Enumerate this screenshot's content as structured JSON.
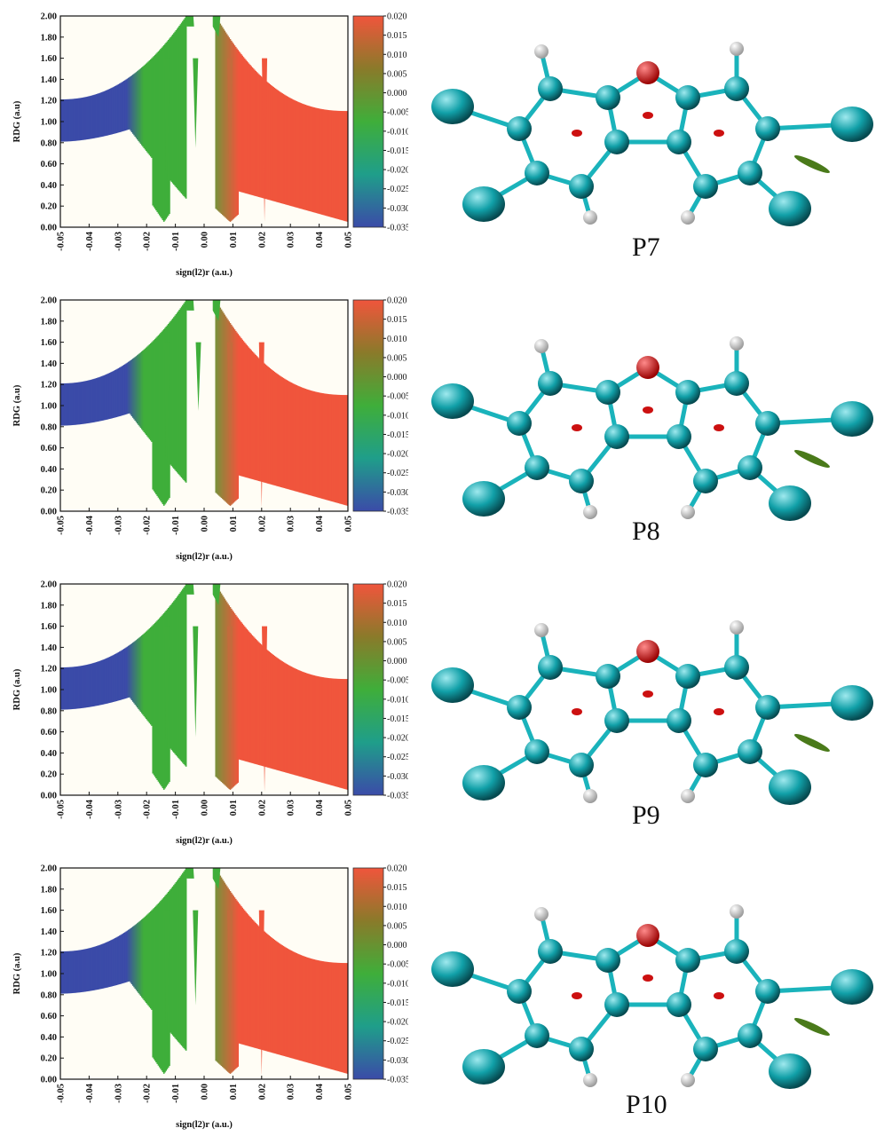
{
  "colors": {
    "blue": "#3b4ba8",
    "green": "#3fae3a",
    "red": "#f0553c",
    "carbon": "#11a0a8",
    "oxygen": "#e01818",
    "hydrogen": "#e8e8e8"
  },
  "molecule_labels": [
    "P7",
    "P8",
    "P9",
    "P10"
  ],
  "chart_data": [
    {
      "type": "scatter",
      "title": "",
      "xlabel": "sign(l2)r (a.u.)",
      "ylabel": "RDG (a.u)",
      "xlim": [
        -0.05,
        0.05
      ],
      "ylim": [
        0.0,
        2.0
      ],
      "x_ticks": [
        "-0.05",
        "-0.04",
        "-0.03",
        "-0.02",
        "-0.01",
        "0.00",
        "0.01",
        "0.02",
        "0.03",
        "0.04",
        "0.05"
      ],
      "y_ticks": [
        "0.00",
        "0.20",
        "0.40",
        "0.60",
        "0.80",
        "1.00",
        "1.20",
        "1.40",
        "1.60",
        "1.80",
        "2.00"
      ],
      "colorbar": {
        "range": [
          -0.035,
          0.02
        ],
        "ticks": [
          "0.020",
          "0.015",
          "0.010",
          "0.005",
          "0.000",
          "-0.005",
          "-0.010",
          "-0.015",
          "-0.020",
          "-0.025",
          "-0.030",
          "-0.035"
        ],
        "colors": [
          "#3b4ba8",
          "#1f9e8a",
          "#3fae3a",
          "#8a7a2a",
          "#f0553c"
        ]
      },
      "spikes": [
        {
          "x": -0.013,
          "y": 0.08
        },
        {
          "x": -0.003,
          "y": 0.75
        },
        {
          "x": 0.009,
          "y": 0.1
        },
        {
          "x": 0.021,
          "y": 0.05
        }
      ]
    },
    {
      "type": "scatter",
      "title": "",
      "xlabel": "sign(l2)r (a.u.)",
      "ylabel": "RDG (a.u)",
      "xlim": [
        -0.05,
        0.05
      ],
      "ylim": [
        0.0,
        2.0
      ],
      "x_ticks": [
        "-0.05",
        "-0.04",
        "-0.03",
        "-0.02",
        "-0.01",
        "0.00",
        "0.01",
        "0.02",
        "0.03",
        "0.04",
        "0.05"
      ],
      "y_ticks": [
        "0.00",
        "0.20",
        "0.40",
        "0.60",
        "0.80",
        "1.00",
        "1.20",
        "1.40",
        "1.60",
        "1.80",
        "2.00"
      ],
      "colorbar": {
        "range": [
          -0.035,
          0.02
        ],
        "ticks": [
          "0.020",
          "0.015",
          "0.010",
          "0.005",
          "0.000",
          "-0.005",
          "-0.010",
          "-0.015",
          "-0.020",
          "-0.025",
          "-0.030",
          "-0.035"
        ],
        "colors": [
          "#3b4ba8",
          "#1f9e8a",
          "#3fae3a",
          "#8a7a2a",
          "#f0553c"
        ]
      },
      "spikes": [
        {
          "x": -0.013,
          "y": 0.05
        },
        {
          "x": -0.002,
          "y": 0.95
        },
        {
          "x": 0.009,
          "y": 0.05
        },
        {
          "x": 0.02,
          "y": 0.03
        }
      ]
    },
    {
      "type": "scatter",
      "title": "",
      "xlabel": "sign(l2)r (a.u.)",
      "ylabel": "RDG (a.u)",
      "xlim": [
        -0.05,
        0.05
      ],
      "ylim": [
        0.0,
        2.0
      ],
      "x_ticks": [
        "-0.05",
        "-0.04",
        "-0.03",
        "-0.02",
        "-0.01",
        "0.00",
        "0.01",
        "0.02",
        "0.03",
        "0.04",
        "0.05"
      ],
      "y_ticks": [
        "0.00",
        "0.20",
        "0.40",
        "0.60",
        "0.80",
        "1.00",
        "1.20",
        "1.40",
        "1.60",
        "1.80",
        "2.00"
      ],
      "colorbar": {
        "range": [
          -0.035,
          0.02
        ],
        "ticks": [
          "0.020",
          "0.015",
          "0.010",
          "0.005",
          "0.000",
          "-0.005",
          "-0.010",
          "-0.015",
          "-0.020",
          "-0.025",
          "-0.030",
          "-0.035"
        ],
        "colors": [
          "#3b4ba8",
          "#1f9e8a",
          "#3fae3a",
          "#8a7a2a",
          "#f0553c"
        ]
      },
      "spikes": [
        {
          "x": -0.013,
          "y": 0.08
        },
        {
          "x": -0.003,
          "y": 0.55
        },
        {
          "x": 0.009,
          "y": 0.05
        },
        {
          "x": 0.021,
          "y": 0.03
        }
      ]
    },
    {
      "type": "scatter",
      "title": "",
      "xlabel": "sign(l2)r (a.u.)",
      "ylabel": "RDG (a.u)",
      "xlim": [
        -0.05,
        0.05
      ],
      "ylim": [
        0.0,
        2.0
      ],
      "x_ticks": [
        "-0.05",
        "-0.04",
        "-0.03",
        "-0.02",
        "-0.01",
        "0.00",
        "0.01",
        "0.02",
        "0.03",
        "0.04",
        "0.05"
      ],
      "y_ticks": [
        "0.00",
        "0.20",
        "0.40",
        "0.60",
        "0.80",
        "1.00",
        "1.20",
        "1.40",
        "1.60",
        "1.80",
        "2.00"
      ],
      "colorbar": {
        "range": [
          -0.035,
          0.02
        ],
        "ticks": [
          "0.020",
          "0.015",
          "0.010",
          "0.005",
          "0.000",
          "-0.005",
          "-0.010",
          "-0.015",
          "-0.020",
          "-0.025",
          "-0.030",
          "-0.035"
        ],
        "colors": [
          "#3b4ba8",
          "#1f9e8a",
          "#3fae3a",
          "#8a7a2a",
          "#f0553c"
        ]
      },
      "spikes": [
        {
          "x": -0.013,
          "y": 0.08
        },
        {
          "x": -0.003,
          "y": 0.7
        },
        {
          "x": 0.009,
          "y": 0.08
        },
        {
          "x": 0.02,
          "y": 0.03
        }
      ]
    }
  ]
}
